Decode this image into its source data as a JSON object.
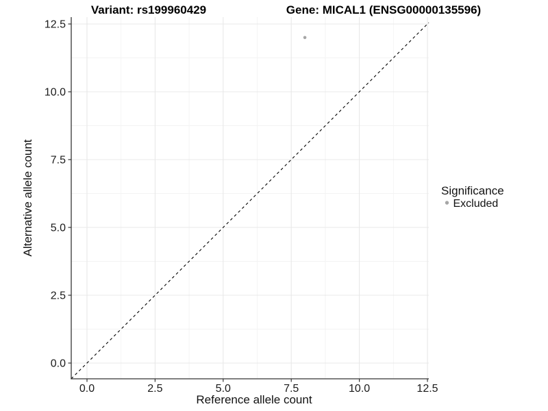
{
  "titles": {
    "variant": "Variant: rs199960429",
    "gene": "Gene: MICAL1 (ENSG00000135596)"
  },
  "axes": {
    "x_label": "Reference allele count",
    "y_label": "Alternative allele count",
    "x_ticks": [
      "0.0",
      "2.5",
      "5.0",
      "7.5",
      "10.0",
      "12.5"
    ],
    "y_ticks": [
      "0.0",
      "2.5",
      "5.0",
      "7.5",
      "10.0",
      "12.5"
    ]
  },
  "legend": {
    "title": "Significance",
    "items": [
      {
        "label": "Excluded",
        "color": "#a6a6a6"
      }
    ]
  },
  "colors": {
    "background": "#ffffff",
    "major_grid": "#e8e8e8",
    "minor_grid": "#f3f3f3",
    "axis_line": "#333333",
    "tick_mark": "#333333",
    "text": "#1a1a1a",
    "point": "#a6a6a6",
    "reference_line": "#000000"
  },
  "chart_data": {
    "type": "scatter",
    "title": "Variant: rs199960429 | Gene: MICAL1 (ENSG00000135596)",
    "xlabel": "Reference allele count",
    "ylabel": "Alternative allele count",
    "xlim": [
      -0.6,
      12.55
    ],
    "ylim": [
      -0.6,
      12.75
    ],
    "x_ticks": [
      0,
      2.5,
      5,
      7.5,
      10,
      12.5
    ],
    "y_ticks": [
      0,
      2.5,
      5,
      7.5,
      10,
      12.5
    ],
    "grid": "major+minor",
    "legend_position": "right",
    "legend_title": "Significance",
    "series": [
      {
        "name": "Excluded",
        "marker_color": "#a6a6a6",
        "marker_radius": 2.3,
        "points": [
          {
            "x": 8,
            "y": 12
          }
        ]
      }
    ],
    "reference_line": {
      "slope": 1,
      "intercept": 0,
      "linestyle": "dashed",
      "color": "#000000"
    }
  }
}
